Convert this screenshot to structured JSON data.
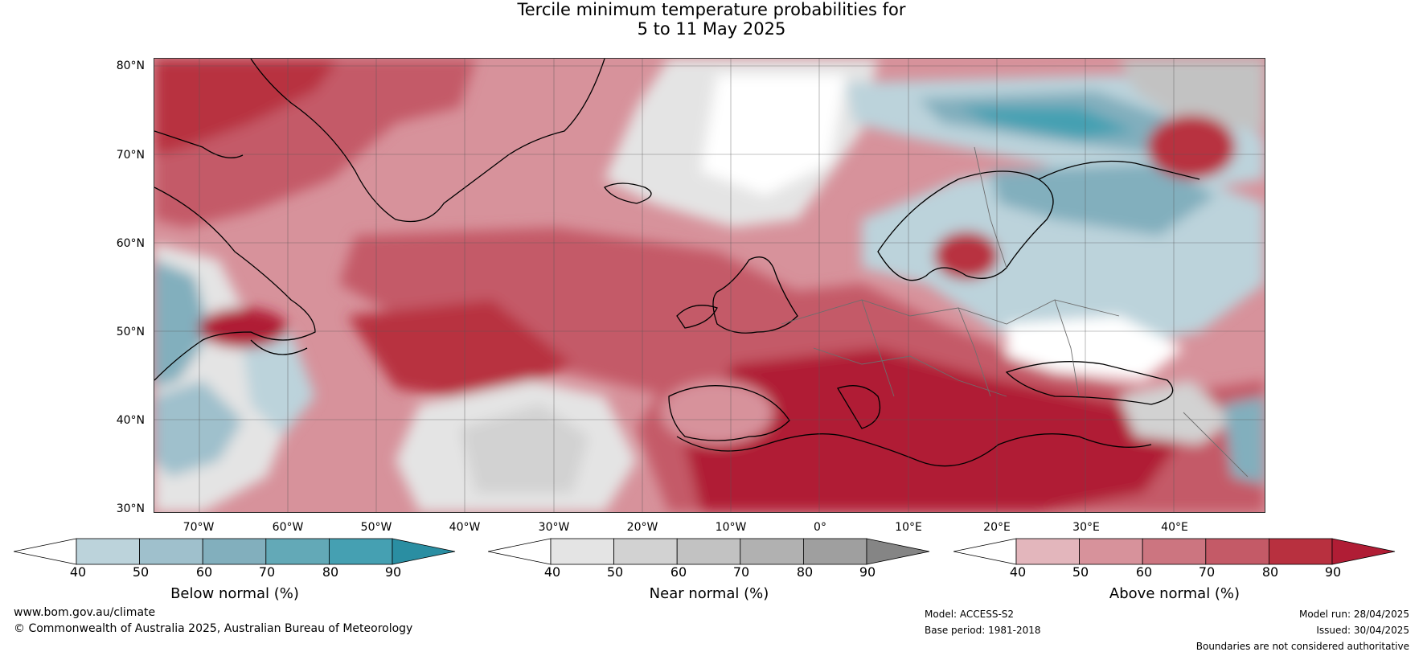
{
  "title": {
    "line1": "Tercile minimum temperature probabilities for",
    "line2": "5 to 11 May 2025"
  },
  "map": {
    "lat_labels": [
      "80°N",
      "70°N",
      "60°N",
      "50°N",
      "40°N",
      "30°N"
    ],
    "lon_labels": [
      "70°W",
      "60°W",
      "50°W",
      "40°W",
      "30°W",
      "20°W",
      "10°W",
      "0°",
      "10°E",
      "20°E",
      "30°E",
      "40°E"
    ]
  },
  "colorbars": {
    "below": {
      "label": "Below normal (%)",
      "ticks": [
        "40",
        "50",
        "60",
        "70",
        "80",
        "90"
      ],
      "colors": [
        "#ffffff",
        "#bcd3db",
        "#9fc0cc",
        "#82afbd",
        "#63a9b7",
        "#45a0b2",
        "#2a8ea2"
      ]
    },
    "near": {
      "label": "Near normal (%)",
      "ticks": [
        "40",
        "50",
        "60",
        "70",
        "80",
        "90"
      ],
      "colors": [
        "#ffffff",
        "#e4e4e4",
        "#d2d2d2",
        "#c2c2c2",
        "#b1b1b1",
        "#9f9f9f",
        "#858585"
      ]
    },
    "above": {
      "label": "Above normal (%)",
      "ticks": [
        "40",
        "50",
        "60",
        "70",
        "80",
        "90"
      ],
      "colors": [
        "#ffffff",
        "#e3b6bc",
        "#d7929b",
        "#cc7580",
        "#c45a67",
        "#b8303f",
        "#b01d35"
      ]
    }
  },
  "footer": {
    "website": "www.bom.gov.au/climate",
    "copyright": "© Commonwealth of Australia 2025, Australian Bureau of Meteorology",
    "model": "Model: ACCESS-S2",
    "base_period": "Base period: 1981-2018",
    "model_run": "Model run: 28/04/2025",
    "issued": "Issued: 30/04/2025",
    "disclaimer": "Boundaries are not considered authoritative"
  }
}
